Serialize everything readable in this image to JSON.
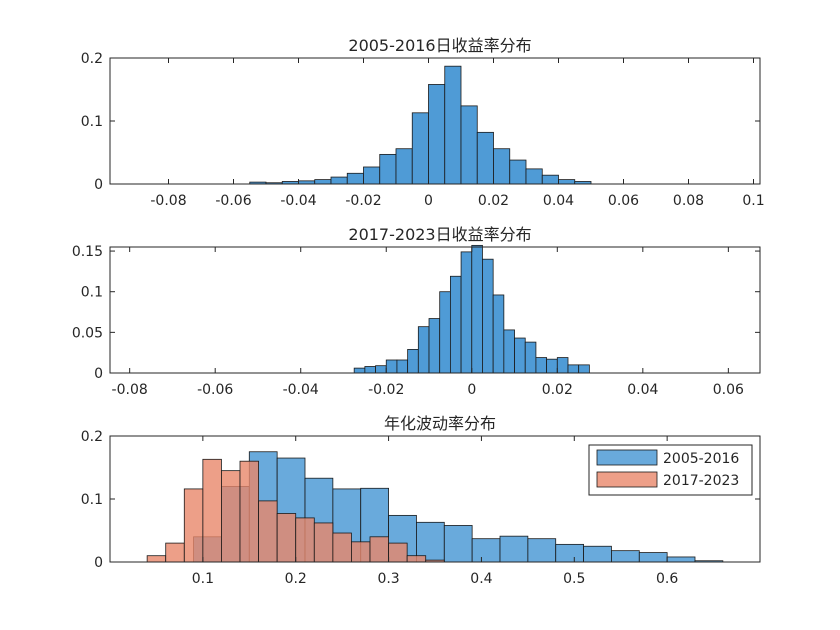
{
  "chart_data": [
    {
      "type": "histogram",
      "title": "2005-2016日收益率分布",
      "xlim": [
        -0.098,
        0.102
      ],
      "ylim": [
        0,
        0.2
      ],
      "xticks": [
        -0.08,
        -0.06,
        -0.04,
        -0.02,
        0,
        0.02,
        0.04,
        0.06,
        0.08,
        0.1
      ],
      "xticklabels": [
        "-0.08",
        "-0.06",
        "-0.04",
        "-0.02",
        "0",
        "0.02",
        "0.04",
        "0.06",
        "0.08",
        "0.1"
      ],
      "yticks": [
        0,
        0.1,
        0.2
      ],
      "yticklabels": [
        "0",
        "0.1",
        "0.2"
      ],
      "series": [
        {
          "name": "2005-2016",
          "color": "#4f9bd6",
          "bin_width": 0.005,
          "bins": [
            [
              -0.055,
              0.003
            ],
            [
              -0.05,
              0.002
            ],
            [
              -0.045,
              0.004
            ],
            [
              -0.04,
              0.005
            ],
            [
              -0.035,
              0.007
            ],
            [
              -0.03,
              0.011
            ],
            [
              -0.025,
              0.017
            ],
            [
              -0.02,
              0.027
            ],
            [
              -0.015,
              0.047
            ],
            [
              -0.01,
              0.056
            ],
            [
              -0.005,
              0.113
            ],
            [
              0,
              0.158
            ],
            [
              0.005,
              0.187
            ],
            [
              0.01,
              0.124
            ],
            [
              0.015,
              0.082
            ],
            [
              0.02,
              0.056
            ],
            [
              0.025,
              0.038
            ],
            [
              0.03,
              0.024
            ],
            [
              0.035,
              0.014
            ],
            [
              0.04,
              0.007
            ],
            [
              0.045,
              0.004
            ]
          ]
        }
      ]
    },
    {
      "type": "histogram",
      "title": "2017-2023日收益率分布",
      "xlim": [
        -0.0846,
        0.0674
      ],
      "ylim": [
        0,
        0.155
      ],
      "xticks": [
        -0.08,
        -0.06,
        -0.04,
        -0.02,
        0,
        0.02,
        0.04,
        0.06
      ],
      "xticklabels": [
        "-0.08",
        "-0.06",
        "-0.04",
        "-0.02",
        "0",
        "0.02",
        "0.04",
        "0.06"
      ],
      "yticks": [
        0,
        0.05,
        0.1,
        0.15
      ],
      "yticklabels": [
        "0",
        "0.05",
        "0.1",
        "0.15"
      ],
      "series": [
        {
          "name": "2017-2023",
          "color": "#4f9bd6",
          "bin_width": 0.0025,
          "bins": [
            [
              -0.0275,
              0.006
            ],
            [
              -0.025,
              0.008
            ],
            [
              -0.0225,
              0.009
            ],
            [
              -0.02,
              0.016
            ],
            [
              -0.0175,
              0.016
            ],
            [
              -0.015,
              0.029
            ],
            [
              -0.0125,
              0.057
            ],
            [
              -0.01,
              0.067
            ],
            [
              -0.0075,
              0.1
            ],
            [
              -0.005,
              0.119
            ],
            [
              -0.0025,
              0.149
            ],
            [
              0,
              0.157
            ],
            [
              0.0025,
              0.14
            ],
            [
              0.005,
              0.096
            ],
            [
              0.0075,
              0.053
            ],
            [
              0.01,
              0.043
            ],
            [
              0.0125,
              0.038
            ],
            [
              0.015,
              0.019
            ],
            [
              0.0175,
              0.017
            ],
            [
              0.02,
              0.019
            ],
            [
              0.0225,
              0.01
            ],
            [
              0.025,
              0.01
            ]
          ]
        }
      ]
    },
    {
      "type": "histogram",
      "title": "年化波动率分布",
      "xlim": [
        0.0,
        0.7
      ],
      "ylim": [
        0,
        0.2
      ],
      "xticks": [
        0.1,
        0.2,
        0.3,
        0.4,
        0.5,
        0.6
      ],
      "xticklabels": [
        "0.1",
        "0.2",
        "0.3",
        "0.4",
        "0.5",
        "0.6"
      ],
      "yticks": [
        0,
        0.1,
        0.2
      ],
      "yticklabels": [
        "0",
        "0.1",
        "0.2"
      ],
      "legend": {
        "location": "top-right",
        "entries": [
          "2005-2016",
          "2017-2023"
        ]
      },
      "series": [
        {
          "name": "2005-2016",
          "color": "#4f9bd6",
          "opacity": 0.85,
          "bin_width": 0.03,
          "bins": [
            [
              0.09,
              0.04
            ],
            [
              0.12,
              0.12
            ],
            [
              0.15,
              0.175
            ],
            [
              0.18,
              0.165
            ],
            [
              0.21,
              0.133
            ],
            [
              0.24,
              0.116
            ],
            [
              0.27,
              0.117
            ],
            [
              0.3,
              0.074
            ],
            [
              0.33,
              0.063
            ],
            [
              0.36,
              0.058
            ],
            [
              0.39,
              0.037
            ],
            [
              0.42,
              0.041
            ],
            [
              0.45,
              0.037
            ],
            [
              0.48,
              0.028
            ],
            [
              0.51,
              0.025
            ],
            [
              0.54,
              0.018
            ],
            [
              0.57,
              0.015
            ],
            [
              0.6,
              0.008
            ],
            [
              0.63,
              0.002
            ]
          ]
        },
        {
          "name": "2017-2023",
          "color": "#e8876a",
          "opacity": 0.8,
          "bin_width": 0.02,
          "bins": [
            [
              0.04,
              0.01
            ],
            [
              0.06,
              0.03
            ],
            [
              0.08,
              0.116
            ],
            [
              0.1,
              0.163
            ],
            [
              0.12,
              0.145
            ],
            [
              0.14,
              0.16
            ],
            [
              0.16,
              0.097
            ],
            [
              0.18,
              0.077
            ],
            [
              0.2,
              0.07
            ],
            [
              0.22,
              0.062
            ],
            [
              0.24,
              0.046
            ],
            [
              0.26,
              0.032
            ],
            [
              0.28,
              0.04
            ],
            [
              0.3,
              0.03
            ],
            [
              0.32,
              0.01
            ],
            [
              0.34,
              0.003
            ]
          ]
        }
      ]
    }
  ]
}
